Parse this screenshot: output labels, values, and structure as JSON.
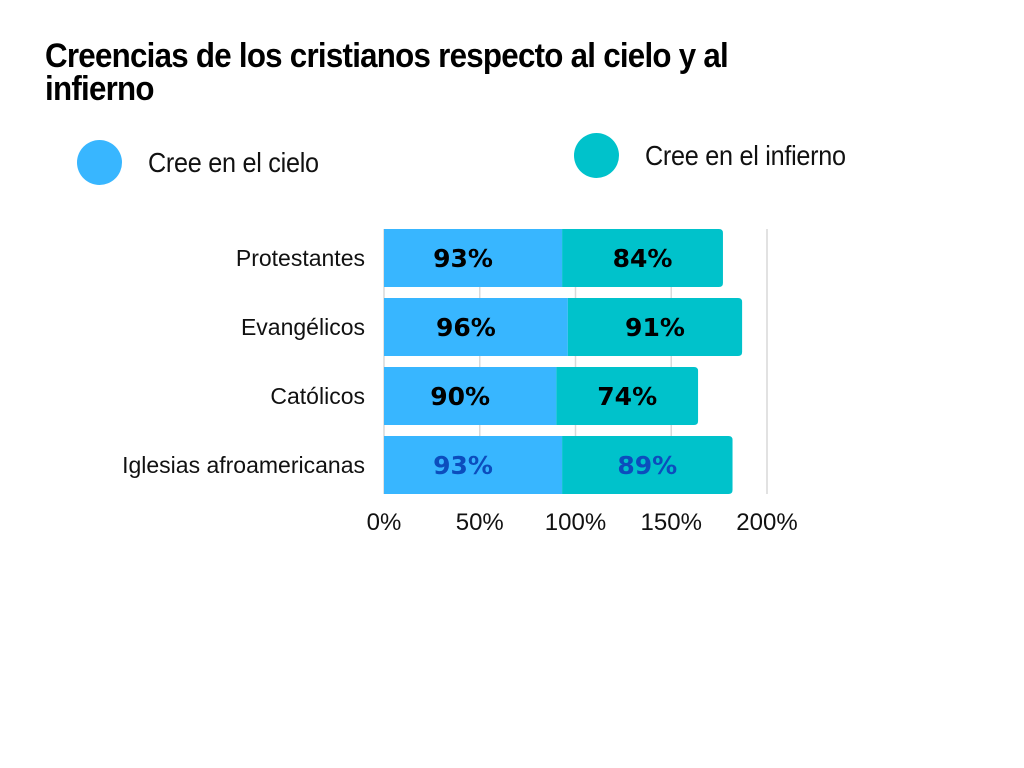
{
  "chart_data": {
    "type": "bar",
    "stacked": true,
    "orientation": "horizontal",
    "title": "Creencias de los cristianos respecto al cielo y al infierno",
    "xlabel": "",
    "ylabel": "",
    "categories": [
      "Protestantes",
      "Evangélicos",
      "Católicos",
      "Iglesias afroamericanas"
    ],
    "series": [
      {
        "name": "Cree en el cielo",
        "color": "#38b6ff",
        "values": [
          93,
          96,
          90,
          93
        ],
        "labels": [
          "93%",
          "96%",
          "90%",
          "93%"
        ],
        "label_colors": [
          "#000000",
          "#000000",
          "#000000",
          "#0c4dbd"
        ]
      },
      {
        "name": "Cree en el infierno",
        "color": "#00c2cb",
        "values": [
          84,
          91,
          74,
          89
        ],
        "labels": [
          "84%",
          "91%",
          "74%",
          "89%"
        ],
        "label_colors": [
          "#000000",
          "#000000",
          "#000000",
          "#0c4dbd"
        ]
      }
    ],
    "xlim": [
      0,
      200
    ],
    "xticks": [
      0,
      50,
      100,
      150,
      200
    ],
    "xtick_labels": [
      "0%",
      "50%",
      "100%",
      "150%",
      "200%"
    ],
    "grid": true,
    "legend_position": "top"
  }
}
